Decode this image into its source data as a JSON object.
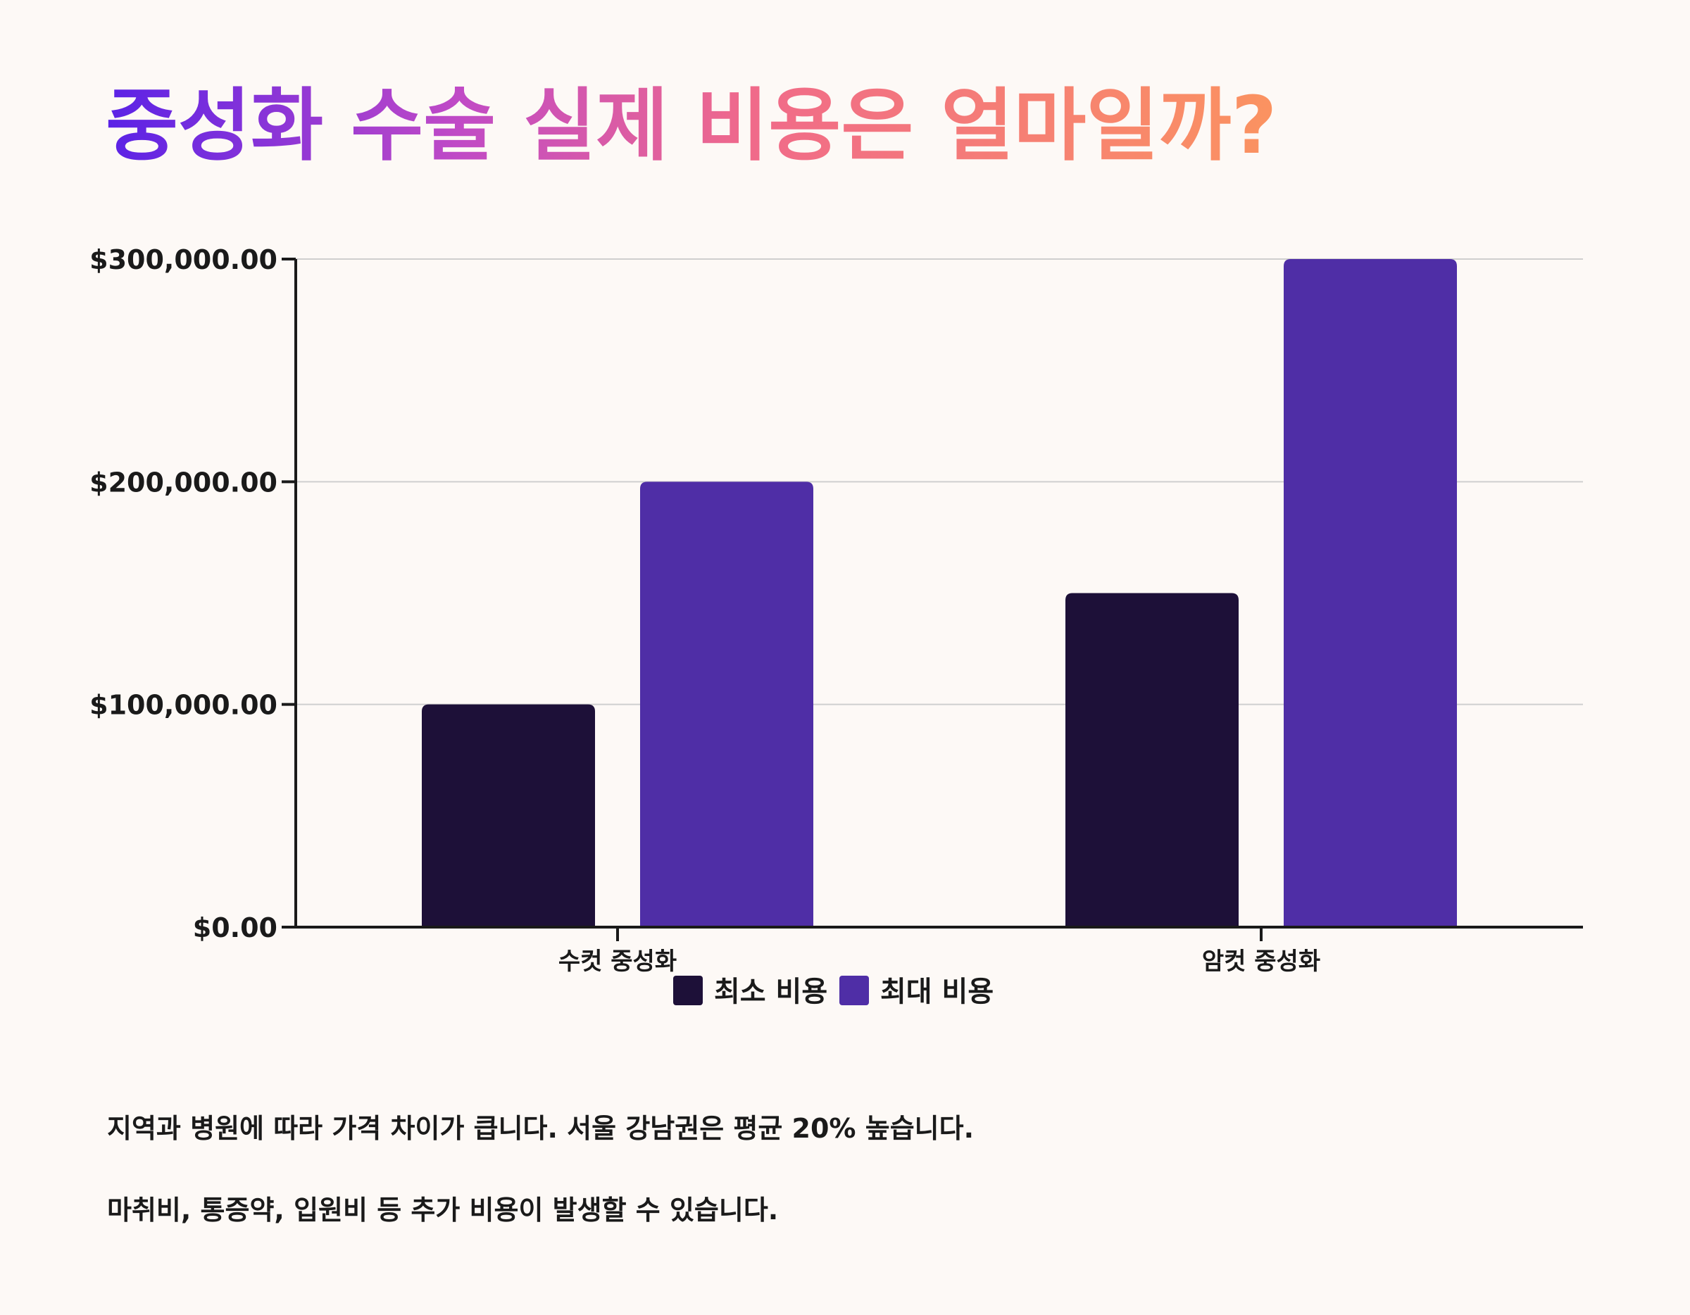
{
  "title": "중성화 수술 실제 비용은 얼마일까?",
  "notes": [
    "지역과 병원에 따라 가격 차이가 큽니다. 서울 강남권은 평균 20% 높습니다.",
    "마취비, 통증약, 입원비 등 추가 비용이 발생할 수 있습니다."
  ],
  "colors": {
    "min_cost": "#1d1038",
    "max_cost": "#4f2ea6",
    "axis": "#1a1a1a",
    "grid": "#cfcfcf",
    "background": "#fdf9f6"
  },
  "chart_data": {
    "type": "bar",
    "title": "",
    "xlabel": "",
    "ylabel": "",
    "categories": [
      "수컷 중성화",
      "암컷 중성화"
    ],
    "series": [
      {
        "name": "최소 비용",
        "values": [
          100000,
          150000
        ]
      },
      {
        "name": "최대 비용",
        "values": [
          200000,
          300000
        ]
      }
    ],
    "ylim": [
      0,
      300000
    ],
    "yticks": [
      0,
      100000,
      200000,
      300000
    ],
    "ytick_labels": [
      "$0.00",
      "$100,000.00",
      "$200,000.00",
      "$300,000.00"
    ],
    "grid": true,
    "legend_position": "bottom-center"
  }
}
